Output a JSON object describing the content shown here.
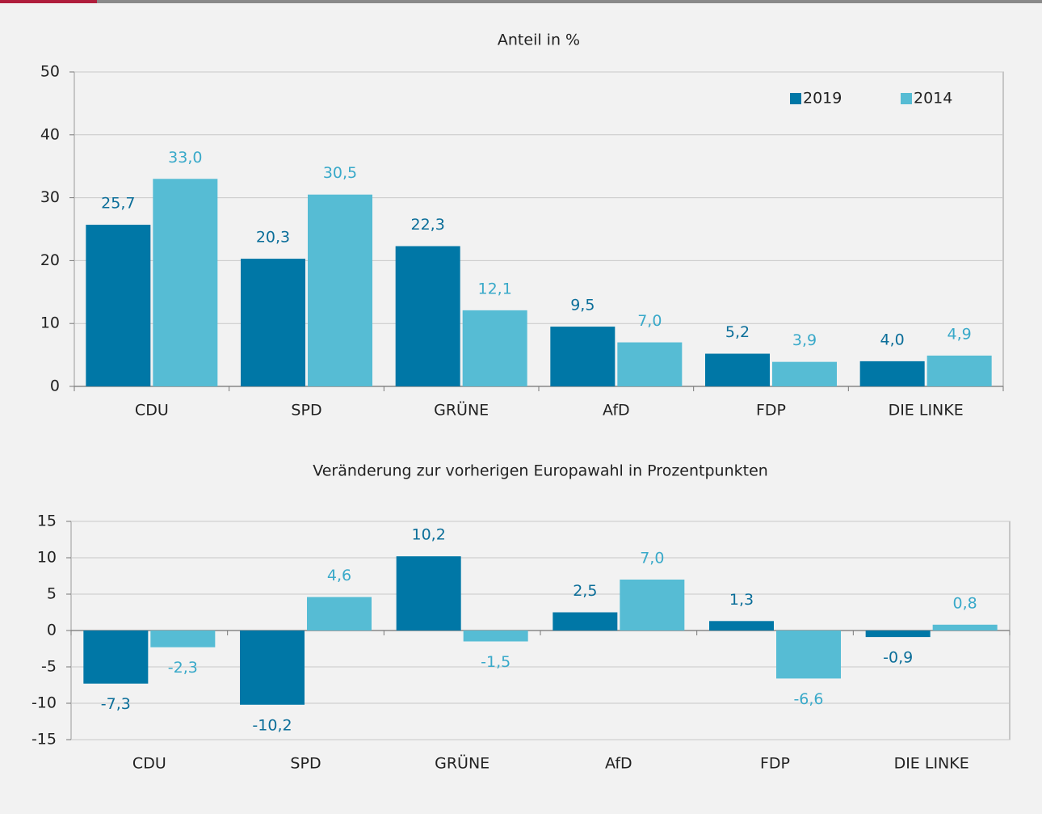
{
  "chart_data": [
    {
      "type": "bar",
      "title": "Anteil in %",
      "categories": [
        "CDU",
        "SPD",
        "GRÜNE",
        "AfD",
        "FDP",
        "DIE LINKE"
      ],
      "series": [
        {
          "name": "2019",
          "color": "#0077a6",
          "values": [
            25.7,
            20.3,
            22.3,
            9.5,
            5.2,
            4.0
          ],
          "value_labels": [
            "25,7",
            "20,3",
            "22,3",
            "9,5",
            "5,2",
            "4,0"
          ]
        },
        {
          "name": "2014",
          "color": "#56bcd4",
          "values": [
            33.0,
            30.5,
            12.1,
            7.0,
            3.9,
            4.9
          ],
          "value_labels": [
            "33,0",
            "30,5",
            "12,1",
            "7,0",
            "3,9",
            "4,9"
          ]
        }
      ],
      "ylim": [
        0,
        50
      ],
      "yticks": [
        0,
        10,
        20,
        30,
        40,
        50
      ],
      "grid": true,
      "legend": "upper right"
    },
    {
      "type": "bar",
      "title": "Veränderung zur vorherigen Europawahl in Prozentpunkten",
      "categories": [
        "CDU",
        "SPD",
        "GRÜNE",
        "AfD",
        "FDP",
        "DIE LINKE"
      ],
      "series": [
        {
          "color": "#0077a6",
          "values": [
            -7.3,
            -10.2,
            10.2,
            2.5,
            1.3,
            -0.9
          ],
          "value_labels": [
            "-7,3",
            "-10,2",
            "10,2",
            "2,5",
            "1,3",
            "-0,9"
          ]
        },
        {
          "color": "#56bcd4",
          "values": [
            -2.3,
            4.6,
            -1.5,
            7.0,
            -6.6,
            0.8
          ],
          "value_labels": [
            "-2,3",
            "4,6",
            "-1,5",
            "7,0",
            "-6,6",
            "0,8"
          ]
        }
      ],
      "ylim": [
        -15,
        15
      ],
      "yticks": [
        -15,
        -10,
        -5,
        0,
        5,
        10,
        15
      ],
      "grid": true
    }
  ]
}
